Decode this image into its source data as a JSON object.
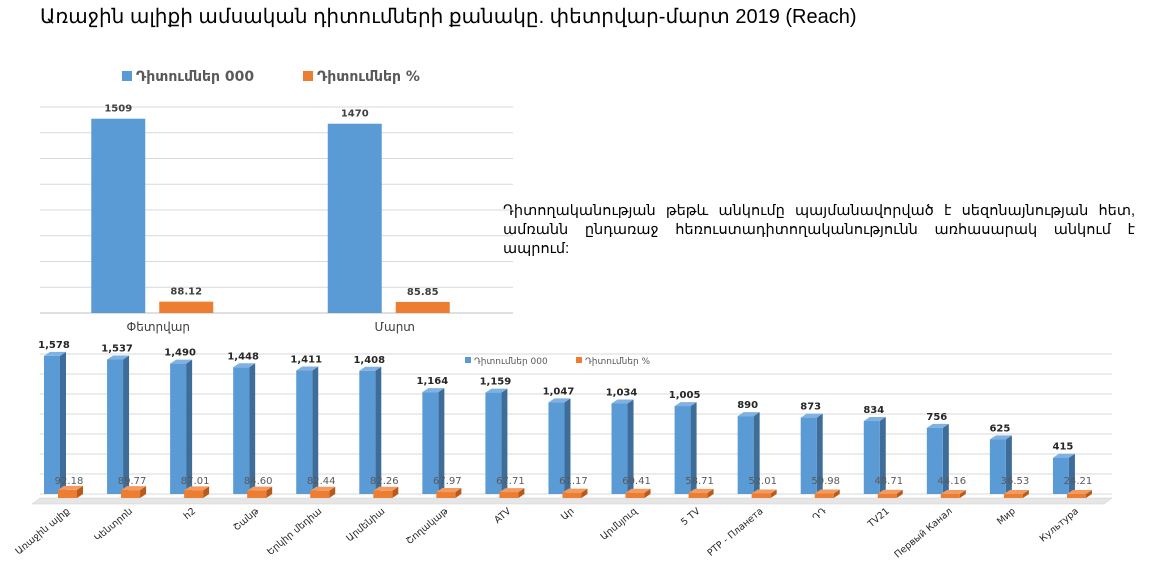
{
  "title": "Առաջին ալիքի ամսական դիտումների քանակը.  փետրվար-մարտ 2019 (Reach)",
  "description": "Դիտողականության թեթև անկումը պայմանավորված է սեզոնայնության հետ, ամռանն ընդառաջ հեռուստադիտողականությունն առհասարակ անկում է ապրում:",
  "colors": {
    "blue": "#5b9bd5",
    "orange": "#ed7d31",
    "blue_side": "#3e6d99",
    "orange_side": "#b85a1b"
  },
  "chart_data": [
    {
      "type": "bar",
      "categories": [
        "Փետրվար",
        "Մարտ"
      ],
      "series": [
        {
          "name": "Դիտումներ 000",
          "values": [
            1509,
            1470
          ],
          "labels": [
            "1509",
            "1470"
          ]
        },
        {
          "name": "Դիտումներ %",
          "values": [
            88.12,
            85.85
          ],
          "labels": [
            "88.12",
            "85.85"
          ]
        }
      ],
      "ylim": [
        0,
        1600
      ],
      "grid": true,
      "legend": "top"
    },
    {
      "type": "bar",
      "categories": [
        "Առաջին ալիք",
        "Կենտրոն",
        "h2",
        "Շանթ",
        "Երկիր մեդիա",
        "Արմենիա",
        "Շողակաթ",
        "ATV",
        "Ար",
        "Արմնյուզ",
        "5 TV",
        "РТР - Планета",
        "ԴԴ",
        "TV21",
        "Первый Канал",
        "Мир",
        "Культура"
      ],
      "series": [
        {
          "name": "Դիտումներ 000",
          "values": [
            1578,
            1537,
            1490,
            1448,
            1411,
            1408,
            1164,
            1159,
            1047,
            1034,
            1005,
            890,
            873,
            834,
            756,
            625,
            415
          ],
          "labels": [
            "1,578",
            "1,537",
            "1,490",
            "1,448",
            "1,411",
            "1,408",
            "1,164",
            "1,159",
            "1,047",
            "1,034",
            "1,005",
            "890",
            "873",
            "834",
            "756",
            "625",
            "415"
          ]
        },
        {
          "name": "Դիտումներ %",
          "values": [
            92.18,
            89.77,
            87.01,
            84.6,
            82.44,
            82.26,
            67.97,
            67.71,
            61.17,
            60.41,
            58.71,
            52.01,
            50.98,
            48.71,
            44.16,
            36.53,
            24.21
          ],
          "labels": [
            "92.18",
            "89.77",
            "87.01",
            "84.60",
            "82.44",
            "82.26",
            "67.97",
            "67.71",
            "61.17",
            "60.41",
            "58.71",
            "52.01",
            "50.98",
            "48.71",
            "44.16",
            "36.53",
            "24.21"
          ]
        }
      ],
      "ylim": [
        0,
        1600
      ],
      "grid": true,
      "legend": "top"
    }
  ]
}
